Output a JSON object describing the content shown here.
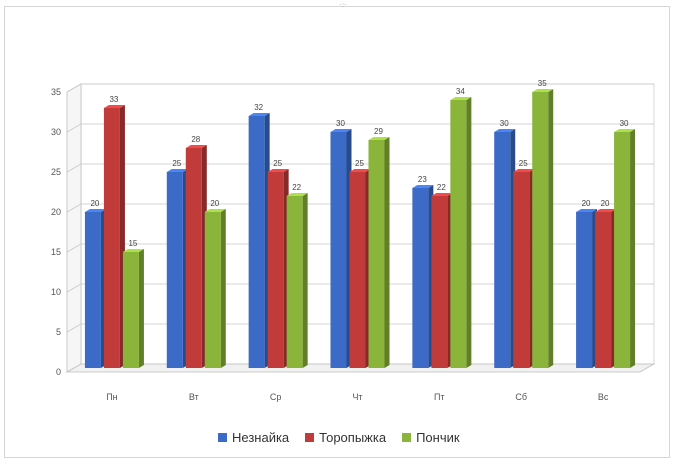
{
  "chart_data": {
    "type": "bar",
    "categories": [
      "Пн",
      "Вт",
      "Ср",
      "Чт",
      "Пт",
      "Сб",
      "Вс"
    ],
    "series": [
      {
        "name": "Незнайка",
        "color": "#3b6bc6",
        "values": [
          20,
          25,
          32,
          30,
          23,
          30,
          20
        ]
      },
      {
        "name": "Торопыжка",
        "color": "#c23b3b",
        "values": [
          33,
          28,
          25,
          25,
          22,
          25,
          20
        ]
      },
      {
        "name": "Пончик",
        "color": "#8ab43a",
        "values": [
          15,
          20,
          22,
          29,
          34,
          35,
          30
        ]
      }
    ],
    "ylim": [
      0,
      35
    ],
    "yticks": [
      "0",
      "5",
      "10",
      "15",
      "20",
      "25",
      "30",
      "35"
    ],
    "grid": true,
    "legend": "bottom",
    "style": "3d-clustered-column"
  },
  "top_handle": "·:·"
}
